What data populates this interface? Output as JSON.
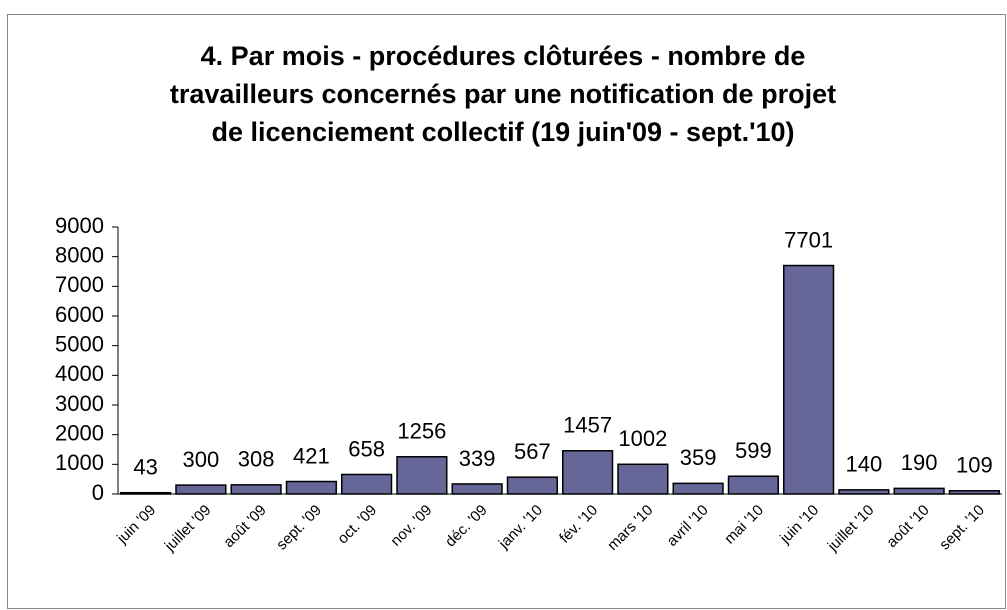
{
  "chart_data": {
    "type": "bar",
    "title": [
      "4. Par mois - procédures clôturées - nombre de",
      "travailleurs concernés par une notification de projet",
      "de licenciement collectif (19 juin'09 - sept.'10)"
    ],
    "categories": [
      "juin '09",
      "juillet '09",
      "août '09",
      "sept. '09",
      "oct. '09",
      "nov. '09",
      "déc. '09",
      "janv. '10",
      "fév. '10",
      "mars '10",
      "avril '10",
      "mai '10",
      "juin '10",
      "juillet '10",
      "août '10",
      "sept. '10"
    ],
    "values": [
      43,
      300,
      308,
      421,
      658,
      1256,
      339,
      567,
      1457,
      1002,
      359,
      599,
      7701,
      140,
      190,
      109
    ],
    "color": "#666699",
    "ylim": [
      0,
      9000
    ],
    "yticks": [
      0,
      1000,
      2000,
      3000,
      4000,
      5000,
      6000,
      7000,
      8000,
      9000
    ]
  }
}
